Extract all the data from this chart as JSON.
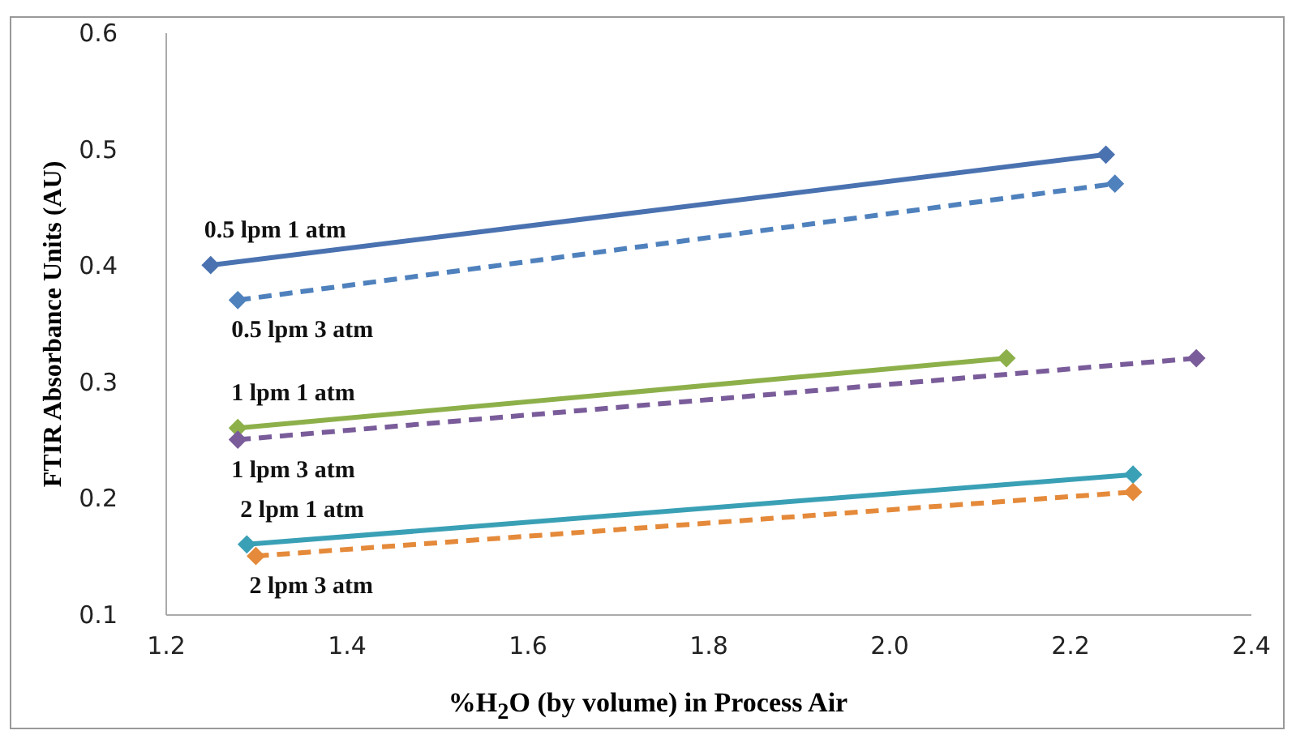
{
  "chart_data": {
    "type": "line",
    "xlabel": "%H$_{2}$O (by volume) in Process Air",
    "ylabel": "FTIR Absorbance Units (AU)",
    "xlim": [
      1.2,
      2.4
    ],
    "xticks": [
      {
        "value": 1.2,
        "label": "1.2"
      },
      {
        "value": 1.4,
        "label": "1.4"
      },
      {
        "value": 1.6,
        "label": "1.6"
      },
      {
        "value": 1.8,
        "label": "1.8"
      },
      {
        "value": 2.0,
        "label": "2.0"
      },
      {
        "value": 2.2,
        "label": "2.2"
      },
      {
        "value": 2.4,
        "label": "2.4"
      }
    ],
    "ylim": [
      0.1,
      0.6
    ],
    "yticks": [
      0.1,
      0.2,
      0.3,
      0.4,
      0.5,
      0.6
    ],
    "grid": false,
    "marker": "diamond",
    "series": [
      {
        "name": "0.5 lpm 1 atm",
        "color": "#4a72b0",
        "line_style": "solid",
        "x": [
          1.25,
          2.24
        ],
        "values": [
          0.4,
          0.495
        ]
      },
      {
        "name": "0.5 lpm 3 atm",
        "color": "#4f81bd",
        "line_style": "dashed",
        "x": [
          1.28,
          2.25
        ],
        "values": [
          0.37,
          0.47
        ]
      },
      {
        "name": "1 lpm 1 atm",
        "color": "#8db04a",
        "line_style": "solid",
        "x": [
          1.28,
          2.13
        ],
        "values": [
          0.26,
          0.32
        ]
      },
      {
        "name": "1 lpm 3 atm",
        "color": "#7a5c9a",
        "line_style": "dashed",
        "x": [
          1.28,
          2.34
        ],
        "values": [
          0.25,
          0.32
        ]
      },
      {
        "name": "2 lpm 1 atm",
        "color": "#3aa0b5",
        "line_style": "solid",
        "x": [
          1.29,
          2.27
        ],
        "values": [
          0.16,
          0.22
        ]
      },
      {
        "name": "2 lpm 3 atm",
        "color": "#e48a3a",
        "line_style": "dashed",
        "x": [
          1.3,
          2.27
        ],
        "values": [
          0.15,
          0.205
        ]
      }
    ]
  }
}
